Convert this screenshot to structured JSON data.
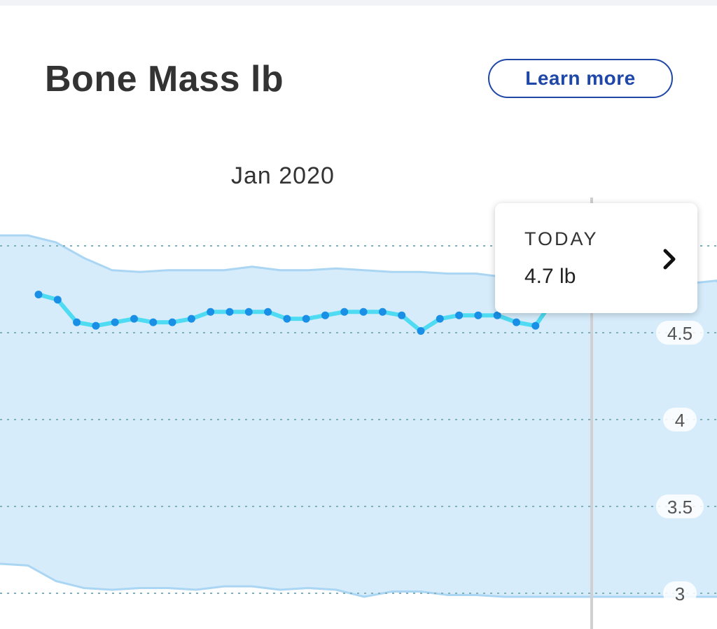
{
  "card": {
    "title": "Bone Mass lb",
    "learn_more_label": "Learn more"
  },
  "tooltip": {
    "label": "TODAY",
    "value": "4.7 lb",
    "icon": "chevron-right-icon"
  },
  "colors": {
    "range_fill": "#d6ecfb",
    "range_edge": "#aad6f4",
    "line": "#4fdbf2",
    "point": "#1a8fe6",
    "gridline": "#7fb0bb",
    "accent": "#1f47a8"
  },
  "chart_data": {
    "type": "line",
    "x_label": "Jan 2020",
    "y_ticks": [
      4.5,
      4,
      3.5,
      3
    ],
    "y_tick_labels": [
      "4.5",
      "4",
      "3.5",
      "3"
    ],
    "ylim": [
      2.96,
      5.0
    ],
    "grid": "horizontal dotted",
    "series": [
      {
        "values": [
          4.72,
          4.69,
          4.56,
          4.54,
          4.56,
          4.58,
          4.56,
          4.56,
          4.58,
          4.62,
          4.62,
          4.62,
          4.62,
          4.58,
          4.58,
          4.6,
          4.62,
          4.62,
          4.62,
          4.6,
          4.51,
          4.58,
          4.6,
          4.6,
          4.6,
          4.56,
          4.54,
          4.7
        ]
      }
    ],
    "range_band": {
      "upper": [
        5.06,
        5.06,
        5.02,
        4.93,
        4.86,
        4.85,
        4.86,
        4.86,
        4.86,
        4.88,
        4.86,
        4.86,
        4.87,
        4.86,
        4.85,
        4.85,
        4.84,
        4.84,
        4.82,
        4.76,
        4.74,
        4.78,
        4.79,
        4.79,
        4.78,
        4.79,
        4.8,
        4.79
      ],
      "lower": [
        3.17,
        3.16,
        3.07,
        3.03,
        3.02,
        3.03,
        3.03,
        3.02,
        3.04,
        3.04,
        3.02,
        3.03,
        3.02,
        2.98,
        3.01,
        3.01,
        2.99,
        2.99,
        2.98,
        2.98,
        2.98,
        2.98,
        2.98,
        2.98,
        2.98,
        2.98,
        2.98,
        2.98
      ]
    }
  }
}
